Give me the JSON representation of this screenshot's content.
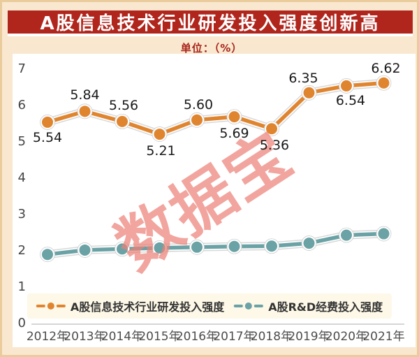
{
  "page": {
    "background": "#f9e8cf",
    "border_color": "#eacb9b"
  },
  "header": {
    "title": "A股信息技术行业研发投入强度创新高",
    "title_bg": "#b0251c",
    "title_color": "#ffffff",
    "unit_label": "单位：（%）",
    "unit_color": "#a8241b"
  },
  "watermark": {
    "text": "数据宝",
    "color": "#ee8278"
  },
  "chart_data": {
    "type": "line",
    "title": "A股信息技术行业研发投入强度创新高",
    "unit": "%",
    "categories": [
      "2012年",
      "2013年",
      "2014年",
      "2015年",
      "2016年",
      "2017年",
      "2018年",
      "2019年",
      "2020年",
      "2021年"
    ],
    "series": [
      {
        "name": "A股信息技术行业研发投入强度",
        "color": "#e0852f",
        "values": [
          5.54,
          5.84,
          5.56,
          5.21,
          5.6,
          5.69,
          5.36,
          6.35,
          6.54,
          6.62
        ],
        "data_labels": [
          "5.54",
          "5.84",
          "5.56",
          "5.21",
          "5.60",
          "5.69",
          "5.36",
          "6.35",
          "6.54",
          "6.62"
        ]
      },
      {
        "name": "A股R&D经费投入强度",
        "color": "#6aa2a5",
        "values": [
          1.9,
          2.02,
          2.05,
          2.08,
          2.1,
          2.12,
          2.13,
          2.21,
          2.43,
          2.47
        ],
        "data_labels": []
      }
    ],
    "ylim": [
      0,
      7
    ],
    "yticks": [
      0,
      1,
      2,
      3,
      4,
      5,
      6,
      7
    ],
    "grid": false,
    "axis_line": "bottom-only",
    "legend_position": "bottom"
  }
}
